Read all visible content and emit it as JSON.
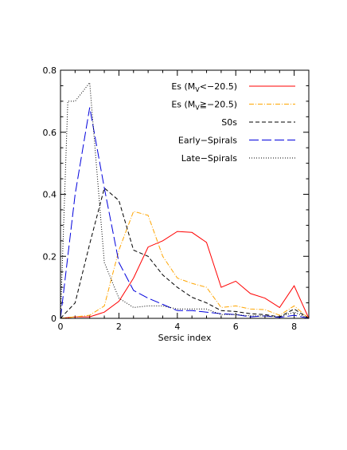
{
  "chart_data": {
    "type": "line",
    "title": "",
    "xlabel": "Sersic index",
    "ylabel": "",
    "xlim": [
      0,
      8.5
    ],
    "ylim": [
      0,
      0.8
    ],
    "x_ticks": [
      "0",
      "2",
      "4",
      "6",
      "8"
    ],
    "y_ticks": [
      "0",
      "0.2",
      "0.4",
      "0.6",
      "0.8"
    ],
    "legend_position": "top-right",
    "series": [
      {
        "name_main": "Es (M",
        "name_sub": "V",
        "name_tail": "<−20.5)",
        "color": "#ff0000",
        "dash": "",
        "x": [
          0,
          0.5,
          1,
          1.5,
          2,
          2.5,
          3,
          3.5,
          4,
          4.5,
          5,
          5.5,
          6,
          6.5,
          7,
          7.5,
          8,
          8.5
        ],
        "y": [
          0.0,
          0.005,
          0.005,
          0.02,
          0.055,
          0.13,
          0.23,
          0.25,
          0.28,
          0.277,
          0.245,
          0.1,
          0.12,
          0.08,
          0.065,
          0.035,
          0.105,
          0.0
        ]
      },
      {
        "name_main": "Es (M",
        "name_sub": "V",
        "name_tail": "≧−20.5)",
        "color": "#ffa500",
        "dash": "6,2,1,2",
        "x": [
          0,
          0.5,
          1,
          1.5,
          2,
          2.5,
          3,
          3.5,
          4,
          4.5,
          5,
          5.5,
          6,
          6.5,
          7,
          7.5,
          8,
          8.5
        ],
        "y": [
          0.0,
          0.005,
          0.01,
          0.04,
          0.22,
          0.345,
          0.332,
          0.2,
          0.13,
          0.113,
          0.1,
          0.035,
          0.04,
          0.03,
          0.028,
          0.01,
          0.04,
          0.0
        ]
      },
      {
        "name_main": "S0s",
        "name_sub": "",
        "name_tail": "",
        "color": "#000000",
        "dash": "5,3",
        "x": [
          0,
          0.5,
          1,
          1.5,
          2,
          2.5,
          3,
          3.5,
          4,
          4.5,
          5,
          5.5,
          6,
          6.5,
          7,
          7.5,
          8,
          8.5
        ],
        "y": [
          0.0,
          0.05,
          0.24,
          0.42,
          0.38,
          0.22,
          0.2,
          0.14,
          0.1,
          0.068,
          0.05,
          0.025,
          0.022,
          0.015,
          0.012,
          0.005,
          0.03,
          0.0
        ]
      },
      {
        "name_main": "Early−Spirals",
        "name_sub": "",
        "name_tail": "",
        "color": "#0000dd",
        "dash": "12,4",
        "x": [
          0,
          0.5,
          1,
          1.5,
          2,
          2.5,
          3,
          3.5,
          4,
          4.5,
          5,
          5.5,
          6,
          6.5,
          7,
          7.5,
          8,
          8.5
        ],
        "y": [
          0.0,
          0.4,
          0.68,
          0.42,
          0.18,
          0.09,
          0.065,
          0.045,
          0.025,
          0.025,
          0.02,
          0.015,
          0.012,
          0.005,
          0.008,
          0.003,
          0.01,
          0.0
        ]
      },
      {
        "name_main": "Late−Spirals",
        "name_sub": "",
        "name_tail": "",
        "color": "#000000",
        "dash": "1,2",
        "x": [
          0,
          0.25,
          0.5,
          1,
          1.5,
          2,
          2.5,
          3,
          3.5,
          4,
          4.5,
          5,
          5.5,
          6,
          6.5,
          7,
          7.5,
          8,
          8.5
        ],
        "y": [
          0.0,
          0.7,
          0.7,
          0.76,
          0.18,
          0.065,
          0.035,
          0.04,
          0.04,
          0.03,
          0.03,
          0.03,
          0.012,
          0.012,
          0.008,
          0.008,
          0.005,
          0.02,
          0.0
        ]
      }
    ]
  }
}
